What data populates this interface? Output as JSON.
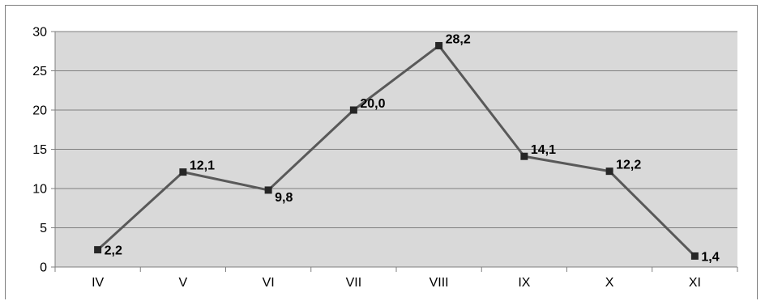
{
  "chart_data": {
    "type": "line",
    "categories": [
      "IV",
      "V",
      "VI",
      "VII",
      "VIII",
      "IX",
      "X",
      "XI"
    ],
    "series": [
      {
        "values": [
          2.2,
          12.1,
          9.8,
          20.0,
          28.2,
          14.1,
          12.2,
          1.4
        ],
        "data_labels": [
          "2,2",
          "12,1",
          "9,8",
          "20,0",
          "28,2",
          "14,1",
          "12,2",
          "1,4"
        ]
      }
    ],
    "yticks": [
      0,
      5,
      10,
      15,
      20,
      25,
      30
    ],
    "ylim": [
      0,
      30
    ],
    "grid": true,
    "legend": "none",
    "colors": {
      "plot_background": "#d9d9d9",
      "line": "#595959",
      "marker": "#262626",
      "gridline": "#7f7f7f"
    }
  }
}
